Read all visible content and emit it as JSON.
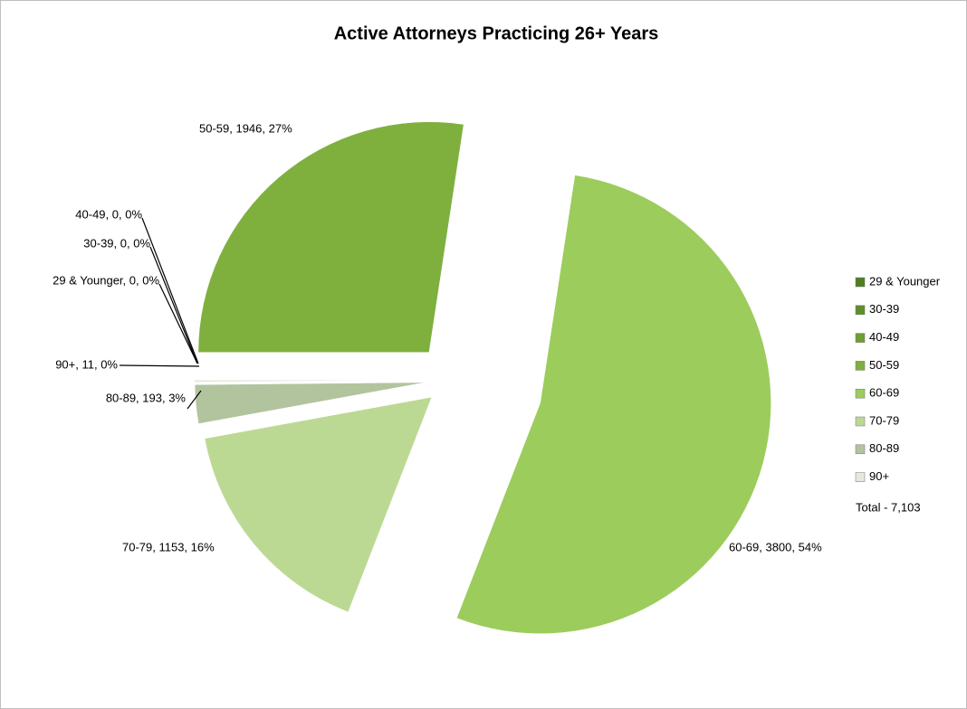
{
  "chart_data": {
    "type": "pie",
    "title": "Active Attorneys Practicing 26+ Years",
    "categories": [
      "29 & Younger",
      "30-39",
      "40-49",
      "50-59",
      "60-69",
      "70-79",
      "80-89",
      "90+"
    ],
    "values": [
      0,
      0,
      0,
      1946,
      3800,
      1153,
      193,
      11
    ],
    "value_labels": [
      "29 & Younger, 0, 0%",
      "30-39, 0, 0%",
      "40-49, 0, 0%",
      "50-59, 1946, 27%",
      "60-69, 3800, 54%",
      "70-79, 1153, 16%",
      "80-89, 193, 3%",
      "90+, 11, 0%"
    ],
    "colors": [
      "#4f7f22",
      "#5e8f2a",
      "#6e9f32",
      "#7fb03e",
      "#9ccc5c",
      "#bcd994",
      "#b2c49e",
      "#e3e9dc"
    ],
    "total_label": "Total - 7,103",
    "legend": "right"
  }
}
